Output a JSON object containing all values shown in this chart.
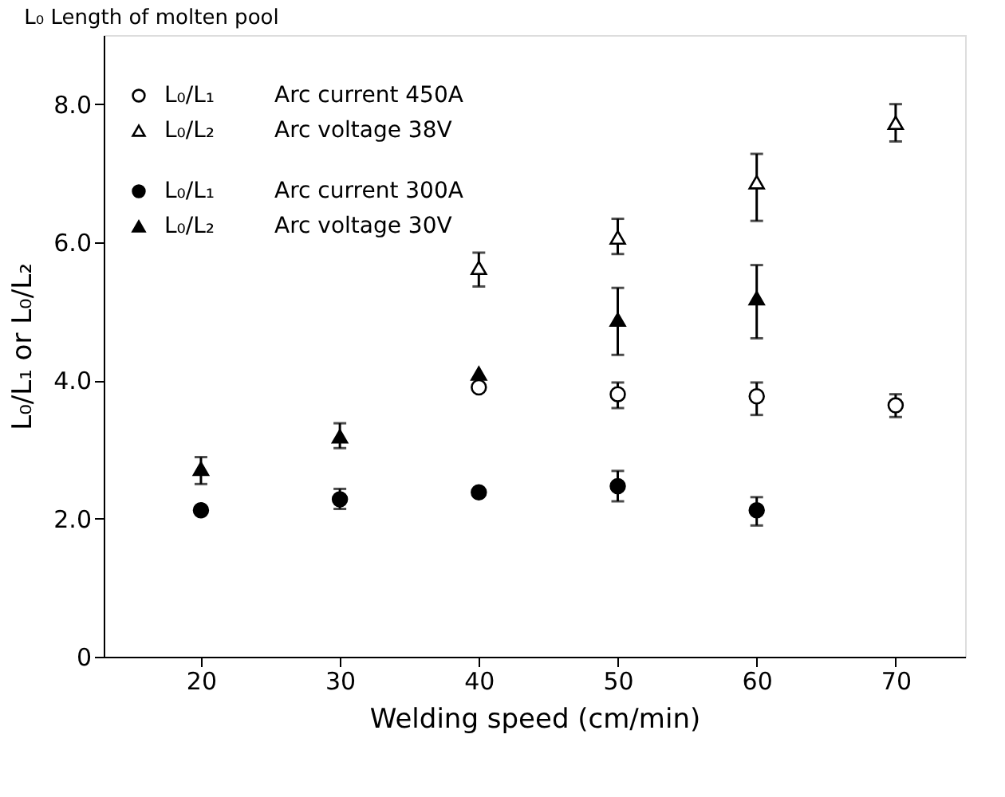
{
  "chart_data": {
    "type": "scatter",
    "title": "L₀ Length of molten pool",
    "xlabel": "Welding speed (cm/min)",
    "ylabel": "L₀/L₁ or L₀/L₂",
    "xlim": [
      13,
      75
    ],
    "xticks": [
      20,
      30,
      40,
      50,
      60,
      70
    ],
    "ylim": [
      0,
      9
    ],
    "yticks": [
      0,
      {
        "value": 2,
        "label": "2.0"
      },
      {
        "value": 4,
        "label": "4.0"
      },
      {
        "value": 6,
        "label": "6.0"
      },
      {
        "value": 8,
        "label": "8.0"
      }
    ],
    "grid": false,
    "legend": "top left",
    "annotations": [
      "Arc current 450A",
      "Arc voltage 38V",
      "Arc current 300A",
      "Arc voltage 30V"
    ],
    "series": [
      {
        "name": "L₀/L₁",
        "color": "#ffffff",
        "marker": "circle",
        "x": [
          40,
          50,
          60,
          70
        ],
        "values": [
          3.9,
          3.8,
          3.77,
          3.64
        ],
        "errors": [
          null,
          [
            3.6,
            3.97
          ],
          [
            3.5,
            3.97
          ],
          [
            3.47,
            3.8
          ]
        ]
      },
      {
        "name": "L₀/L₂",
        "color": "#ffffff",
        "marker": "triangle",
        "x": [
          40,
          50,
          60,
          70
        ],
        "values": [
          5.63,
          6.07,
          6.87,
          7.73
        ],
        "errors": [
          [
            5.36,
            5.85
          ],
          [
            5.83,
            6.34
          ],
          [
            6.31,
            7.28
          ],
          [
            7.46,
            8.0
          ]
        ]
      },
      {
        "name": "L₀/L₁",
        "color": "#000000",
        "marker": "circle",
        "x": [
          20,
          30,
          40,
          50,
          60
        ],
        "values": [
          2.12,
          2.28,
          2.38,
          2.47,
          2.12
        ],
        "errors": [
          null,
          [
            2.14,
            2.43
          ],
          null,
          [
            2.25,
            2.69
          ],
          [
            1.9,
            2.31
          ]
        ]
      },
      {
        "name": "L₀/L₂",
        "color": "#000000",
        "marker": "triangle",
        "x": [
          20,
          30,
          40,
          50,
          60
        ],
        "values": [
          2.72,
          3.19,
          4.1,
          4.88,
          5.19
        ],
        "errors": [
          [
            2.5,
            2.89
          ],
          [
            3.02,
            3.38
          ],
          null,
          [
            4.37,
            5.34
          ],
          [
            4.61,
            5.67
          ]
        ]
      }
    ]
  }
}
